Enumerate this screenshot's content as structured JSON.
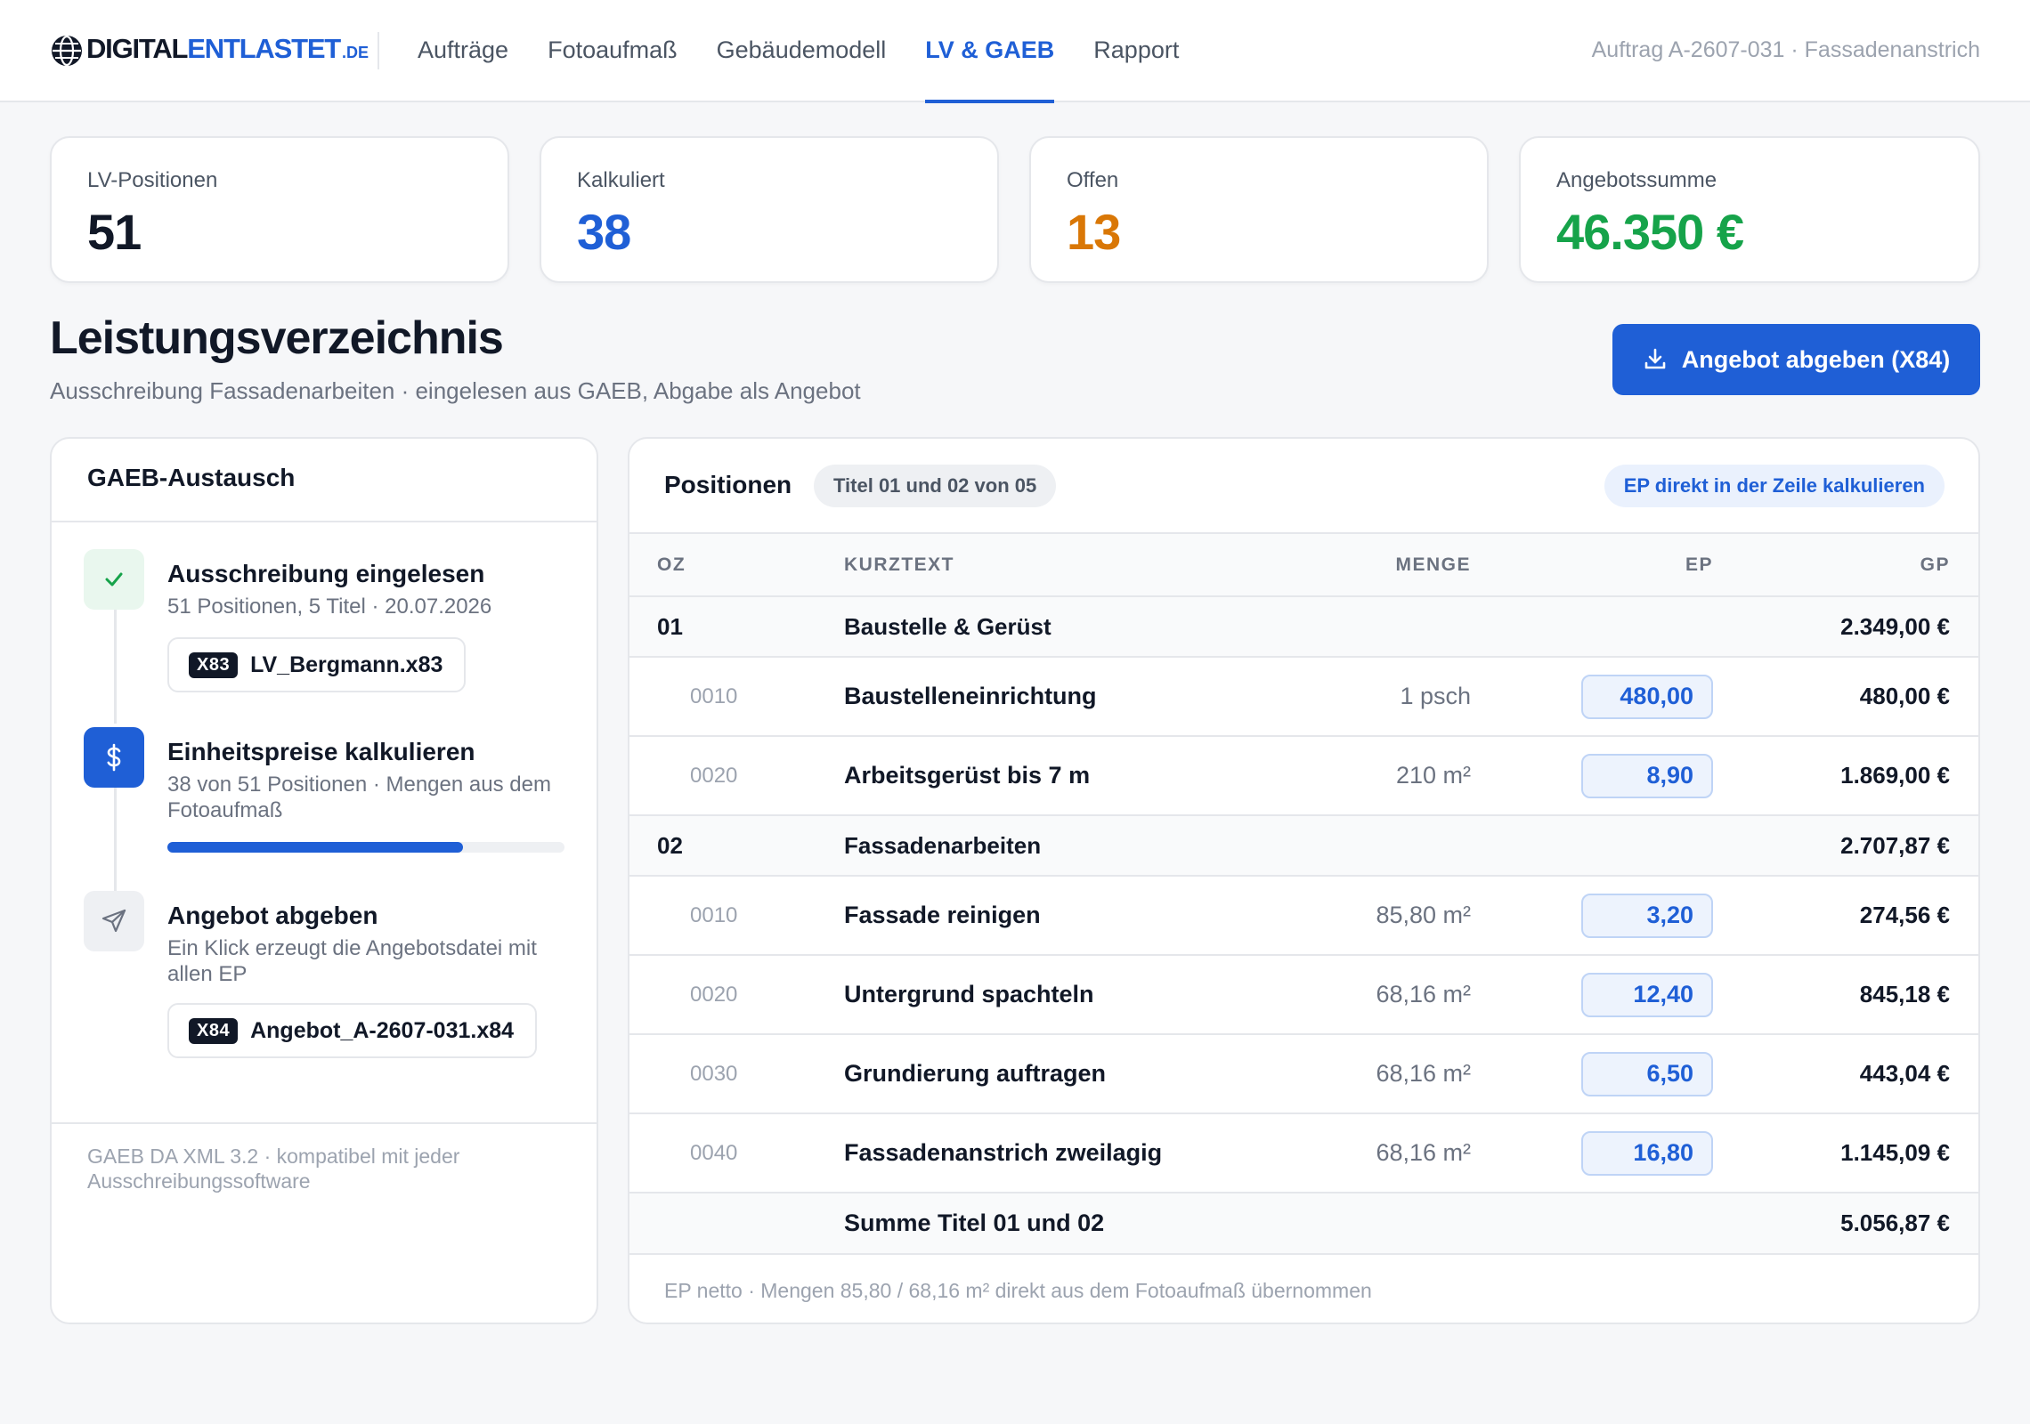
{
  "brand": {
    "name_part1": "DIGITAL",
    "name_part2": "ENTLASTET",
    "name_suffix": ".DE",
    "accent_color": "#1f5fd6"
  },
  "nav": {
    "items": [
      {
        "label": "Aufträge",
        "active": false
      },
      {
        "label": "Fotoaufmaß",
        "active": false
      },
      {
        "label": "Gebäudemodell",
        "active": false
      },
      {
        "label": "LV & GAEB",
        "active": true
      },
      {
        "label": "Rapport",
        "active": false
      }
    ],
    "order_ref": "Auftrag A-2607-031 · Fassadenanstrich"
  },
  "kpis": [
    {
      "label": "LV-Positionen",
      "value": "51",
      "color": "#111827"
    },
    {
      "label": "Kalkuliert",
      "value": "38",
      "color": "#1f5fd6"
    },
    {
      "label": "Offen",
      "value": "13",
      "color": "#d97706"
    },
    {
      "label": "Angebotssumme",
      "value": "46.350 €",
      "color": "#16a34a"
    }
  ],
  "page": {
    "title": "Leistungsverzeichnis",
    "subtitle": "Ausschreibung Fassadenarbeiten · eingelesen aus GAEB, Abgabe als Angebot",
    "primary_button": "Angebot abgeben (X84)",
    "primary_button_icon": "download-icon"
  },
  "gaeb": {
    "title": "GAEB-Austausch",
    "steps": [
      {
        "title": "Ausschreibung eingelesen",
        "desc": "51 Positionen, 5 Titel · 20.07.2026",
        "icon": "check-icon",
        "file_tag": "X83",
        "file_name": "LV_Bergmann.x83"
      },
      {
        "title": "Einheitspreise kalkulieren",
        "desc": "38 von 51 Positionen · Mengen aus dem Fotoaufmaß",
        "icon": "dollar-icon",
        "progress": 0.745
      },
      {
        "title": "Angebot abgeben",
        "desc": "Ein Klick erzeugt die Angebotsdatei mit allen EP",
        "icon": "send-icon",
        "file_tag": "X84",
        "file_name": "Angebot_A-2607-031.x84"
      }
    ],
    "footer": "GAEB DA XML 3.2 · kompatibel mit jeder Ausschreibungssoftware"
  },
  "positions": {
    "title": "Positionen",
    "scope_pill": "Titel 01 und 02 von 05",
    "hint_pill": "EP direkt in der Zeile kalkulieren",
    "columns": {
      "oz": "OZ",
      "text": "KURZTEXT",
      "qty": "MENGE",
      "ep": "EP",
      "gp": "GP"
    },
    "rows": [
      {
        "type": "group",
        "oz": "01",
        "text": "Baustelle & Gerüst",
        "gp": "2.349,00 €"
      },
      {
        "type": "item",
        "oz": "0010",
        "text": "Baustelleneinrichtung",
        "qty": "1 psch",
        "ep": "480,00",
        "gp": "480,00 €"
      },
      {
        "type": "item",
        "oz": "0020",
        "text": "Arbeitsgerüst bis 7 m",
        "qty": "210 m²",
        "ep": "8,90",
        "gp": "1.869,00 €"
      },
      {
        "type": "group",
        "oz": "02",
        "text": "Fassadenarbeiten",
        "gp": "2.707,87 €"
      },
      {
        "type": "item",
        "oz": "0010",
        "text": "Fassade reinigen",
        "qty": "85,80 m²",
        "ep": "3,20",
        "gp": "274,56 €"
      },
      {
        "type": "item",
        "oz": "0020",
        "text": "Untergrund spachteln",
        "qty": "68,16 m²",
        "ep": "12,40",
        "gp": "845,18 €"
      },
      {
        "type": "item",
        "oz": "0030",
        "text": "Grundierung auftragen",
        "qty": "68,16 m²",
        "ep": "6,50",
        "gp": "443,04 €"
      },
      {
        "type": "item",
        "oz": "0040",
        "text": "Fassadenanstrich zweilagig",
        "qty": "68,16 m²",
        "ep": "16,80",
        "gp": "1.145,09 €"
      },
      {
        "type": "sum",
        "text": "Summe Titel 01 und 02",
        "gp": "5.056,87 €"
      }
    ],
    "footnote": "EP netto · Mengen 85,80 / 68,16 m² direkt aus dem Fotoaufmaß übernommen"
  }
}
